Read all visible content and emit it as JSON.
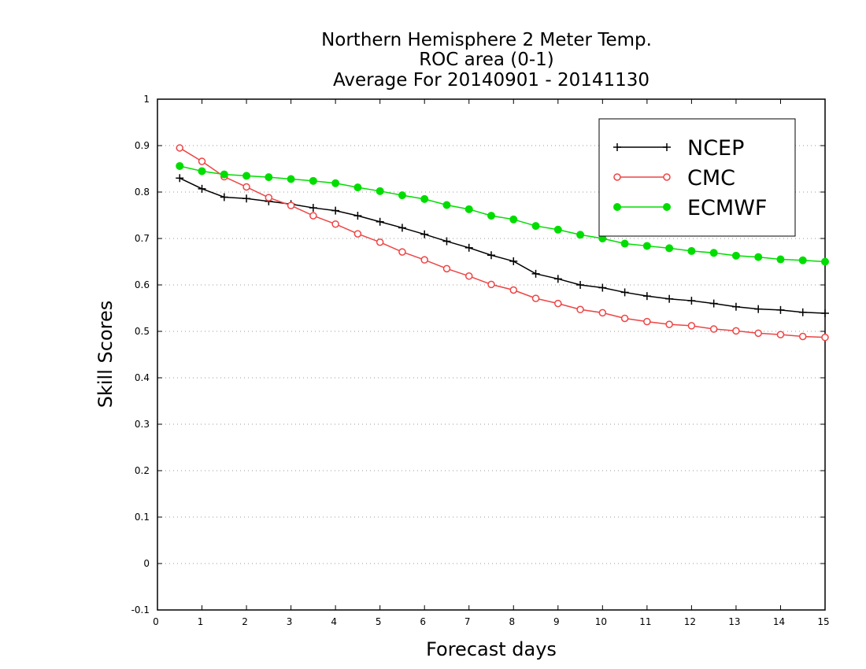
{
  "chart_data": {
    "type": "line",
    "title": [
      "Northern Hemisphere 2 Meter Temp.",
      "ROC area (0-1)",
      "Average For 20140901 - 20141130"
    ],
    "xlabel": "Forecast days",
    "ylabel": "Skill Scores",
    "xlim": [
      0,
      15
    ],
    "ylim": [
      -0.1,
      1
    ],
    "xticks": [
      "0",
      "1",
      "2",
      "3",
      "4",
      "5",
      "6",
      "7",
      "8",
      "9",
      "10",
      "11",
      "12",
      "13",
      "14",
      "15"
    ],
    "yticks": [
      "-0.1",
      "0",
      "0.1",
      "0.2",
      "0.3",
      "0.4",
      "0.5",
      "0.6",
      "0.7",
      "0.8",
      "0.9",
      "1"
    ],
    "ytick_values": [
      -0.1,
      0,
      0.1,
      0.2,
      0.3,
      0.4,
      0.5,
      0.6,
      0.7,
      0.8,
      0.9,
      1.0
    ],
    "grid": "horizontal dotted",
    "legend_position": "top-right",
    "x": [
      0.5,
      1,
      1.5,
      2,
      2.5,
      3,
      3.5,
      4,
      4.5,
      5,
      5.5,
      6,
      6.5,
      7,
      7.5,
      8,
      8.5,
      9,
      9.5,
      10,
      10.5,
      11,
      11.5,
      12,
      12.5,
      13,
      13.5,
      14,
      14.5,
      15
    ],
    "series": [
      {
        "name": "NCEP",
        "color": "#000000",
        "marker": "plus",
        "values": [
          0.83,
          0.807,
          0.789,
          0.786,
          0.78,
          0.774,
          0.766,
          0.76,
          0.749,
          0.736,
          0.723,
          0.709,
          0.694,
          0.68,
          0.664,
          0.651,
          0.624,
          0.613,
          0.6,
          0.594,
          0.584,
          0.576,
          0.57,
          0.566,
          0.56,
          0.553,
          0.548,
          0.546,
          0.541,
          0.539
        ]
      },
      {
        "name": "CMC",
        "color": "#ee4444",
        "marker": "open-circle",
        "values": [
          0.895,
          0.866,
          0.833,
          0.811,
          0.788,
          0.771,
          0.749,
          0.731,
          0.71,
          0.692,
          0.671,
          0.654,
          0.635,
          0.619,
          0.601,
          0.589,
          0.571,
          0.56,
          0.547,
          0.54,
          0.528,
          0.521,
          0.515,
          0.512,
          0.505,
          0.501,
          0.496,
          0.493,
          0.489,
          0.487
        ]
      },
      {
        "name": "ECMWF",
        "color": "#00dd00",
        "marker": "filled-circle",
        "values": [
          0.856,
          0.845,
          0.838,
          0.835,
          0.832,
          0.828,
          0.824,
          0.819,
          0.81,
          0.802,
          0.793,
          0.785,
          0.772,
          0.763,
          0.749,
          0.741,
          0.727,
          0.719,
          0.708,
          0.7,
          0.689,
          0.684,
          0.679,
          0.673,
          0.669,
          0.663,
          0.66,
          0.655,
          0.653,
          0.65
        ]
      }
    ]
  }
}
